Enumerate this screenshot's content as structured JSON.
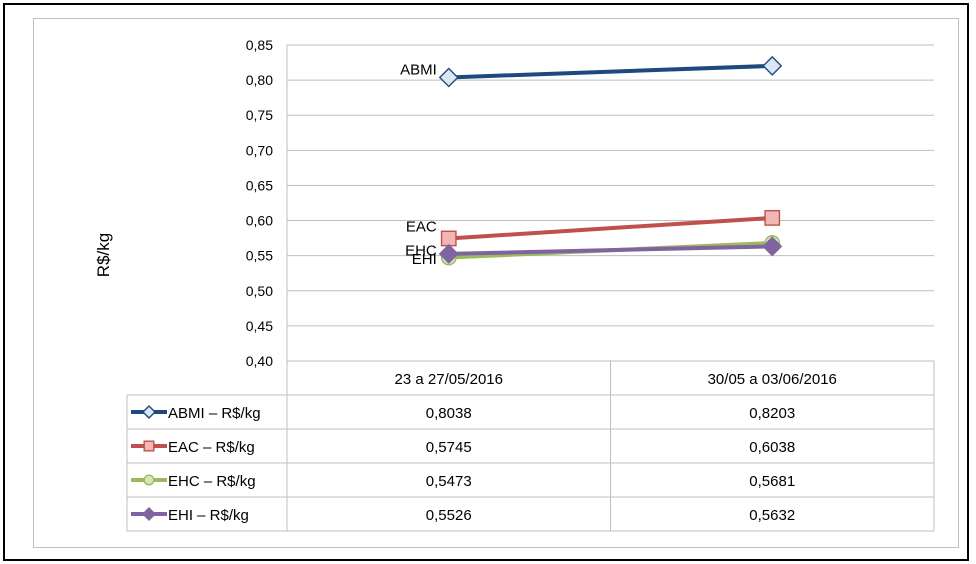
{
  "chart_data": {
    "type": "line",
    "ylabel": "R$/kg",
    "ylim": [
      0.4,
      0.85
    ],
    "ytick_step": 0.05,
    "ytick_labels": [
      "0,40",
      "0,45",
      "0,50",
      "0,55",
      "0,60",
      "0,65",
      "0,70",
      "0,75",
      "0,80",
      "0,85"
    ],
    "categories": [
      "23 a 27/05/2016",
      "30/05 a 03/06/2016"
    ],
    "grid": true,
    "legend_placement": "data-table",
    "series": [
      {
        "name": "ABMI – R$/kg",
        "label": "ABMI",
        "color": "#1f497d",
        "marker": "diamond-hollow",
        "values": [
          0.8038,
          0.8203
        ],
        "value_labels": [
          "0,8038",
          "0,8203"
        ]
      },
      {
        "name": "EAC – R$/kg",
        "label": "EAC",
        "color": "#c0504d",
        "marker": "square",
        "values": [
          0.5745,
          0.6038
        ],
        "value_labels": [
          "0,5745",
          "0,6038"
        ]
      },
      {
        "name": "EHC – R$/kg",
        "label": "EHC",
        "color": "#9bbb59",
        "marker": "circle",
        "values": [
          0.5473,
          0.5681
        ],
        "value_labels": [
          "0,5473",
          "0,5681"
        ]
      },
      {
        "name": "EHI – R$/kg",
        "label": "EHI",
        "color": "#8064a2",
        "marker": "diamond",
        "values": [
          0.5526,
          0.5632
        ],
        "value_labels": [
          "0,5526",
          "0,5632"
        ]
      }
    ]
  }
}
